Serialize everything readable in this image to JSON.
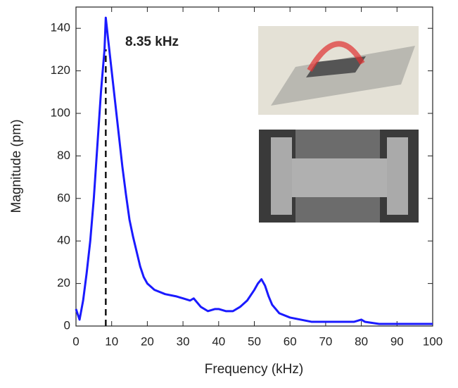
{
  "chart_data": {
    "type": "line",
    "x_label": "Frequency (kHz)",
    "y_label": "Magnitude (pm)",
    "annotation": {
      "text": "8.35 kHz",
      "x": 8.35
    },
    "x": [
      0,
      1,
      2,
      3,
      4,
      5,
      6,
      7,
      8,
      8.35,
      9,
      10,
      11,
      12,
      13,
      14,
      15,
      16,
      17,
      18,
      19,
      20,
      22,
      25,
      28,
      30,
      32,
      33,
      35,
      37,
      39,
      40,
      42,
      44,
      46,
      48,
      50,
      51,
      52,
      53,
      54,
      55,
      57,
      60,
      63,
      66,
      70,
      75,
      78,
      80,
      81,
      85,
      90,
      95,
      100
    ],
    "series": [
      {
        "color": "#1a1aff",
        "values": [
          8,
          3,
          12,
          25,
          40,
          60,
          85,
          110,
          130,
          145,
          135,
          120,
          105,
          90,
          75,
          62,
          50,
          42,
          35,
          28,
          23,
          20,
          17,
          15,
          14,
          13,
          12,
          13,
          9,
          7,
          8,
          8,
          7,
          7,
          9,
          12,
          17,
          20,
          22,
          19,
          14,
          10,
          6,
          4,
          3,
          2,
          2,
          2,
          2,
          3,
          2,
          1,
          1,
          1,
          1
        ]
      }
    ],
    "xlim": [
      0,
      100
    ],
    "ylim": [
      0,
      150
    ],
    "xticks": [
      0,
      10,
      20,
      30,
      40,
      50,
      60,
      70,
      80,
      90,
      100
    ],
    "yticks": [
      0,
      20,
      40,
      60,
      80,
      100,
      120,
      140
    ]
  }
}
